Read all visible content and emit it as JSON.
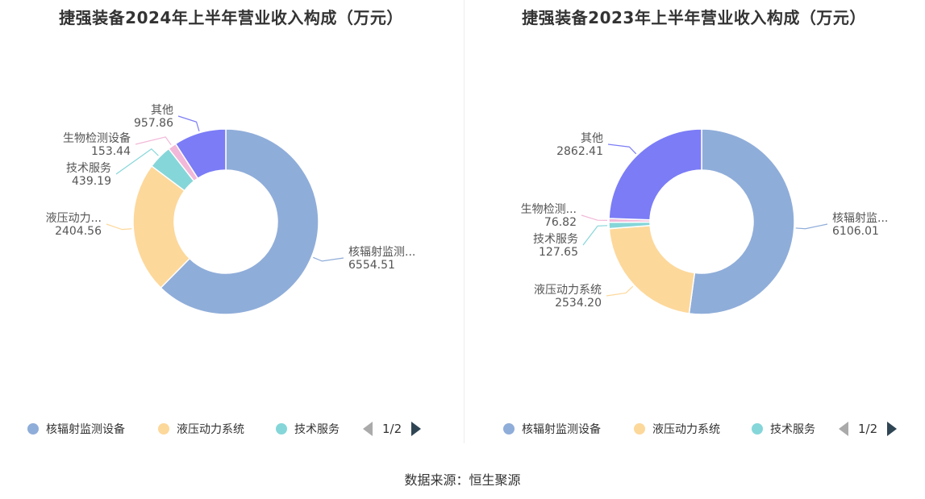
{
  "charts": [
    {
      "title": "捷强装备2024年上半年营业收入构成（万元）",
      "legend": [
        {
          "name": "核辐射监测设备",
          "color": "#8fadd9"
        },
        {
          "name": "液压动力系统",
          "color": "#fdd89b"
        },
        {
          "name": "技术服务",
          "color": "#85d6d9"
        }
      ],
      "pager": "1/2"
    },
    {
      "title": "捷强装备2023年上半年营业收入构成（万元）",
      "legend": [
        {
          "name": "核辐射监测设备",
          "color": "#8fadd9"
        },
        {
          "name": "液压动力系统",
          "color": "#fdd89b"
        },
        {
          "name": "技术服务",
          "color": "#85d6d9"
        }
      ],
      "pager": "1/2"
    }
  ],
  "source": "数据来源：恒生聚源",
  "chart_data": [
    {
      "type": "pie",
      "title": "捷强装备2024年上半年营业收入构成（万元）",
      "donut": true,
      "slices": [
        {
          "name": "核辐射监测设备",
          "label": "核辐射监测...",
          "value": 6554.51,
          "value_text": "6554.51",
          "color": "#8fadd9"
        },
        {
          "name": "液压动力系统",
          "label": "液压动力...",
          "value": 2404.56,
          "value_text": "2404.56",
          "color": "#fdd89b"
        },
        {
          "name": "技术服务",
          "label": "技术服务",
          "value": 439.19,
          "value_text": "439.19",
          "color": "#85d6d9"
        },
        {
          "name": "生物检测设备",
          "label": "生物检测设备",
          "value": 153.44,
          "value_text": "153.44",
          "color": "#f2b8d9"
        },
        {
          "name": "其他",
          "label": "其他",
          "value": 957.86,
          "value_text": "957.86",
          "color": "#7b7cf6"
        }
      ],
      "legend_position": "bottom"
    },
    {
      "type": "pie",
      "title": "捷强装备2023年上半年营业收入构成（万元）",
      "donut": true,
      "slices": [
        {
          "name": "核辐射监测设备",
          "label": "核辐射监...",
          "value": 6106.01,
          "value_text": "6106.01",
          "color": "#8fadd9"
        },
        {
          "name": "液压动力系统",
          "label": "液压动力系统",
          "value": 2534.2,
          "value_text": "2534.20",
          "color": "#fdd89b"
        },
        {
          "name": "技术服务",
          "label": "技术服务",
          "value": 127.65,
          "value_text": "127.65",
          "color": "#85d6d9"
        },
        {
          "name": "生物检测设备",
          "label": "生物检测...",
          "value": 76.82,
          "value_text": "76.82",
          "color": "#f2b8d9"
        },
        {
          "name": "其他",
          "label": "其他",
          "value": 2862.41,
          "value_text": "2862.41",
          "color": "#7b7cf6"
        }
      ],
      "legend_position": "bottom"
    }
  ]
}
